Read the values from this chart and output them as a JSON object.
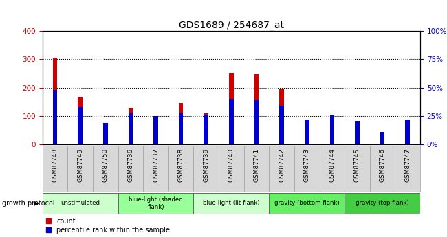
{
  "title": "GDS1689 / 254687_at",
  "samples": [
    "GSM87748",
    "GSM87749",
    "GSM87750",
    "GSM87736",
    "GSM87737",
    "GSM87738",
    "GSM87739",
    "GSM87740",
    "GSM87741",
    "GSM87742",
    "GSM87743",
    "GSM87744",
    "GSM87745",
    "GSM87746",
    "GSM87747"
  ],
  "counts": [
    305,
    168,
    75,
    130,
    101,
    145,
    110,
    252,
    248,
    197,
    80,
    80,
    78,
    45,
    80
  ],
  "percentiles_pct": [
    48,
    33,
    19,
    28,
    25,
    28,
    26,
    40,
    39,
    34,
    22,
    26,
    21,
    11,
    22
  ],
  "groups": [
    {
      "label": "unstimulated",
      "start": 0,
      "end": 3,
      "color": "#ccffcc"
    },
    {
      "label": "blue-light (shaded\nflank)",
      "start": 3,
      "end": 6,
      "color": "#99ff99"
    },
    {
      "label": "blue-light (lit flank)",
      "start": 6,
      "end": 9,
      "color": "#ccffcc"
    },
    {
      "label": "gravity (bottom flank)",
      "start": 9,
      "end": 12,
      "color": "#66ee66"
    },
    {
      "label": "gravity (top flank)",
      "start": 12,
      "end": 15,
      "color": "#44cc44"
    }
  ],
  "ylim_left": [
    0,
    400
  ],
  "ylim_right": [
    0,
    100
  ],
  "yticks_left": [
    0,
    100,
    200,
    300,
    400
  ],
  "yticks_right": [
    0,
    25,
    50,
    75,
    100
  ],
  "bar_color_count": "#cc0000",
  "bar_color_pct": "#0000cc",
  "bg_color": "#d8d8d8",
  "plot_bg": "#ffffff"
}
